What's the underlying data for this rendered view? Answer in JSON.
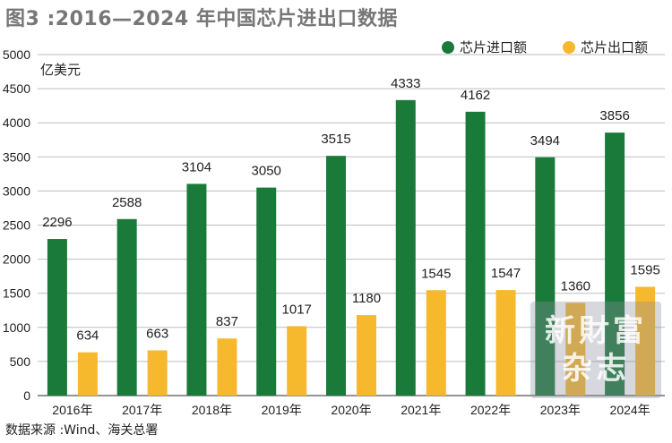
{
  "title": "图3 :2016—2024 年中国芯片进出口数据",
  "source": "数据来源 :Wind、海关总署",
  "watermark": {
    "line1": "新財富",
    "line2": "杂志"
  },
  "chart_data": {
    "type": "bar",
    "ylabel": "亿美元",
    "ylim": [
      0,
      5000
    ],
    "yticks": [
      0,
      500,
      1000,
      1500,
      2000,
      2500,
      3000,
      3500,
      4000,
      4500,
      5000
    ],
    "grid": true,
    "legend_position": "top-right",
    "categories": [
      "2016年",
      "2017年",
      "2018年",
      "2019年",
      "2020年",
      "2021年",
      "2022年",
      "2023年",
      "2024年"
    ],
    "series": [
      {
        "name": "芯片进口额",
        "color": "#1a7a3a",
        "values": [
          2296,
          2588,
          3104,
          3050,
          3515,
          4333,
          4162,
          3494,
          3856
        ]
      },
      {
        "name": "芯片出口额",
        "color": "#f6b82d",
        "values": [
          634,
          663,
          837,
          1017,
          1180,
          1545,
          1547,
          1360,
          1595
        ]
      }
    ]
  }
}
